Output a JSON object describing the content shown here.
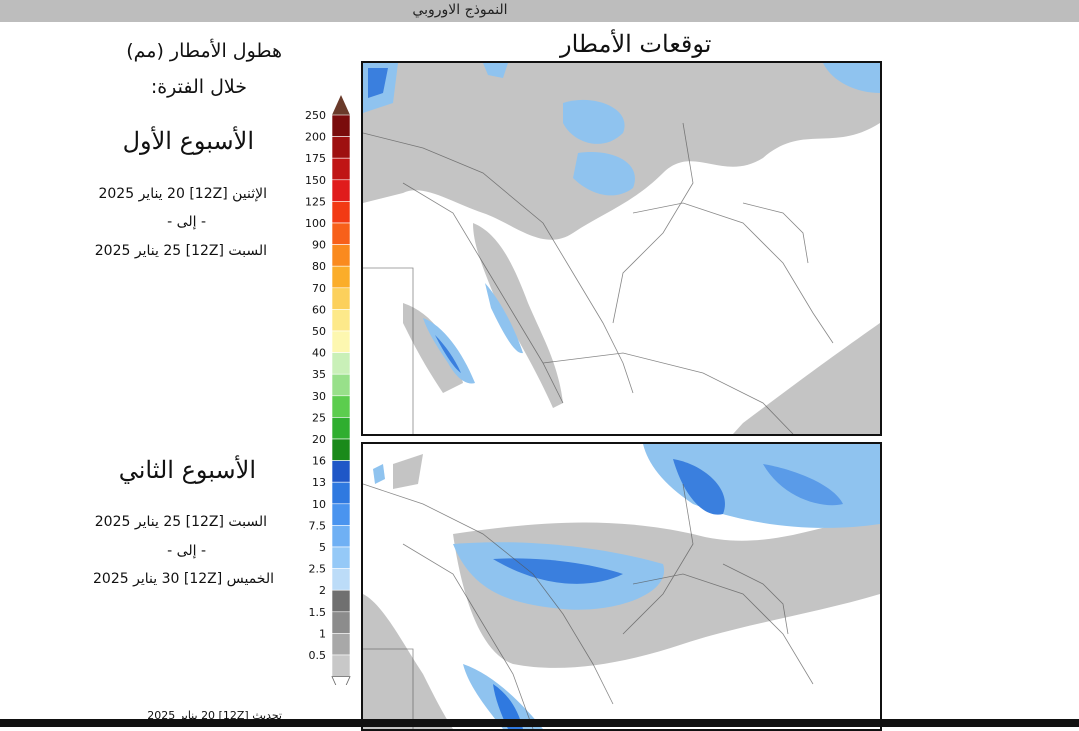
{
  "header": {
    "title": "النموذج الاوروبي"
  },
  "legend_title": {
    "line1": "هطول الأمطار (مم)",
    "line2": "خلال الفترة:"
  },
  "map_title": "توقعات الأمطار",
  "week1": {
    "title": "الأسبوع الأول",
    "from": "الإثنين [12Z] 20 يناير 2025",
    "to_word": "- إلى -",
    "until": "السبت [12Z] 25 يناير 2025"
  },
  "week2": {
    "title": "الأسبوع الثاني",
    "from": "السبت [12Z] 25 يناير 2025",
    "to_word": "- إلى -",
    "until": "الخميس [12Z] 30 يناير 2025"
  },
  "footer": {
    "updated": "تحديث [12Z] 20 يناير 2025"
  },
  "colorbar": {
    "levels": [
      "250",
      "200",
      "175",
      "150",
      "125",
      "100",
      "90",
      "80",
      "70",
      "60",
      "50",
      "40",
      "35",
      "30",
      "25",
      "20",
      "16",
      "13",
      "10",
      "7.5",
      "5",
      "2.5",
      "2",
      "1.5",
      "1",
      "0.5"
    ],
    "colors": [
      "#7a0c0c",
      "#9e1010",
      "#c01515",
      "#e01c1c",
      "#f23a14",
      "#f7601a",
      "#fa8a1e",
      "#fbad2a",
      "#fcd05c",
      "#fde98a",
      "#fdf7b0",
      "#c9f0b8",
      "#98e08a",
      "#5ccd4e",
      "#2fae2f",
      "#1a8a1a",
      "#1f57c7",
      "#2f79e0",
      "#4a94ef",
      "#6fb0f4",
      "#95c9f7",
      "#bcdcf8",
      "#707070",
      "#8c8c8c",
      "#a8a8a8",
      "#c8c8c8"
    ],
    "top_color": "#6a3a2a"
  }
}
